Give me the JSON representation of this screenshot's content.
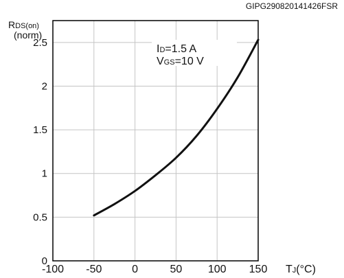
{
  "figure_code": "GIPG290820141426FSR",
  "chart_data": {
    "type": "line",
    "title": "",
    "ylabel": {
      "main": "R",
      "sub": "DS(on)",
      "unit": "(norm)"
    },
    "xlabel": {
      "main": "T",
      "sub": "J",
      "unit": "(°C)"
    },
    "xlim": [
      -100,
      150
    ],
    "ylim": [
      0,
      2.75
    ],
    "x_ticks": [
      -100,
      -50,
      0,
      50,
      100,
      150
    ],
    "x_tick_labels": [
      "-100",
      "-50",
      "0",
      "50",
      "100",
      "150"
    ],
    "y_ticks": [
      0,
      0.5,
      1,
      1.5,
      2,
      2.5
    ],
    "y_tick_labels": [
      "0",
      "0.5",
      "1",
      "1.5",
      "2",
      "2.5"
    ],
    "grid": true,
    "annotations": [
      {
        "main": "I",
        "sub": "D",
        "value": "=1.5 A"
      },
      {
        "main": "V",
        "sub": "GS",
        "value": "=10 V"
      }
    ],
    "series": [
      {
        "color": "#111111",
        "x": [
          -50,
          -25,
          0,
          25,
          50,
          75,
          100,
          125,
          150
        ],
        "y": [
          0.52,
          0.65,
          0.8,
          0.98,
          1.18,
          1.43,
          1.74,
          2.1,
          2.53
        ]
      }
    ]
  }
}
